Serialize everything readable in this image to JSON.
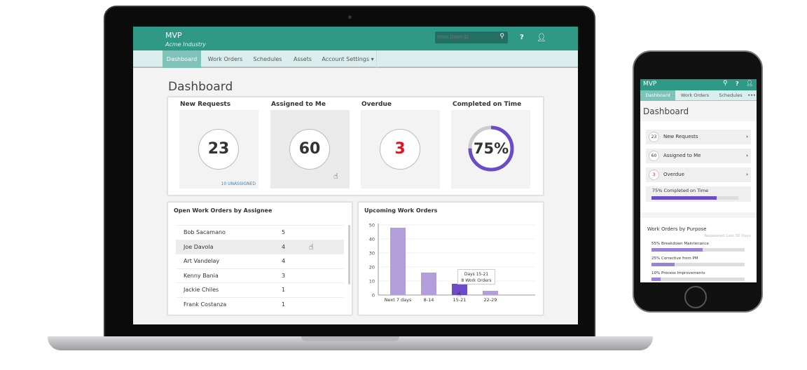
{
  "app": {
    "title": "MVP",
    "subtitle": "Acme Industry",
    "search_placeholder": "Work Order ID",
    "help_label": "?"
  },
  "nav": {
    "tabs": [
      "Dashboard",
      "Work Orders",
      "Schedules",
      "Assets",
      "Account Settings ▾"
    ],
    "active": "Dashboard"
  },
  "page_title": "Dashboard",
  "stats": [
    {
      "label": "New Requests",
      "value": "23",
      "note": "10 UNASSIGNED"
    },
    {
      "label": "Assigned to Me",
      "value": "60"
    },
    {
      "label": "Overdue",
      "value": "3",
      "color": "#e0141e"
    },
    {
      "label": "Completed on Time",
      "value": "75%",
      "percent": 75,
      "color": "#6b4bc6"
    }
  ],
  "assignees": {
    "title": "Open Work Orders by Assignee",
    "rows": [
      {
        "name": "Bob Sacamano",
        "count": "5"
      },
      {
        "name": "Joe Davola",
        "count": "4"
      },
      {
        "name": "Art Vandelay",
        "count": "4"
      },
      {
        "name": "Kenny Bania",
        "count": "3"
      },
      {
        "name": "Jackie Chiles",
        "count": "1"
      },
      {
        "name": "Frank Costanza",
        "count": "1"
      }
    ]
  },
  "chart_data": {
    "type": "bar",
    "title": "Upcoming Work Orders",
    "categories": [
      "Next 7 days",
      "8-14",
      "15-21",
      "22-29"
    ],
    "values": [
      48,
      16,
      8,
      3
    ],
    "ylim": [
      0,
      50
    ],
    "yticks": [
      0,
      10,
      20,
      30,
      40,
      50
    ],
    "grid": true,
    "highlight_index": 2,
    "tooltip": {
      "line1": "Days 15-21",
      "line2": "8 Work Orders"
    },
    "colors": {
      "bar": "#b39ddb",
      "highlight": "#6f4bc9"
    }
  },
  "mobile": {
    "title": "MVP",
    "tabs": [
      "Dashboard",
      "Work Orders",
      "Schedules",
      "•••"
    ],
    "page_title": "Dashboard",
    "items": [
      {
        "num": "23",
        "label": "New Requests"
      },
      {
        "num": "60",
        "label": "Assigned to Me"
      },
      {
        "num": "3",
        "label": "Overdue"
      }
    ],
    "completed": {
      "label": "75% Completed on Time",
      "percent": 75
    },
    "purpose": {
      "title": "Work Orders by Purpose",
      "subtitle": "Requested Last 30 Days",
      "items": [
        {
          "label": "55%  Breakdown Maintenance",
          "percent": 55
        },
        {
          "label": "25%  Corrective from PM",
          "percent": 25
        },
        {
          "label": "10%  Process Improvements",
          "percent": 10
        }
      ]
    }
  }
}
